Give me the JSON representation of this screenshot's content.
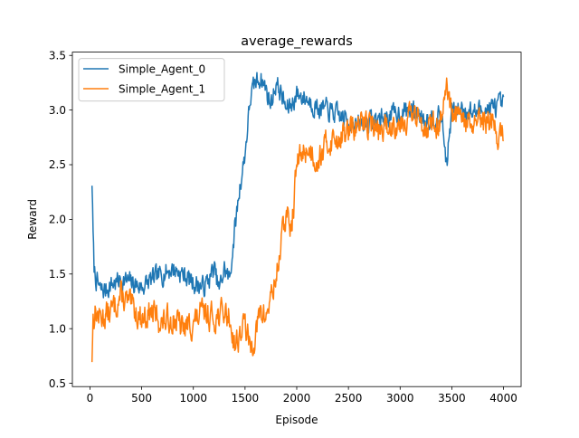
{
  "chart_data": {
    "type": "line",
    "title": "average_rewards",
    "xlabel": "Episode",
    "ylabel": "Reward",
    "xlim": [
      -170,
      4170
    ],
    "ylim": [
      0.47,
      3.53
    ],
    "xticks": [
      0,
      500,
      1000,
      1500,
      2000,
      2500,
      3000,
      3500,
      4000
    ],
    "yticks": [
      0.5,
      1.0,
      1.5,
      2.0,
      2.5,
      3.0,
      3.5
    ],
    "xtick_labels": [
      "0",
      "500",
      "1000",
      "1500",
      "2000",
      "2500",
      "3000",
      "3500",
      "4000"
    ],
    "ytick_labels": [
      "0.5",
      "1.0",
      "1.5",
      "2.0",
      "2.5",
      "3.0",
      "3.5"
    ],
    "legend_position": "top-left",
    "grid": false,
    "series": [
      {
        "name": "Simple_Agent_0",
        "color": "#1f77b4",
        "noise": 0.09,
        "seed": 7,
        "x": [
          20,
          30,
          40,
          60,
          100,
          150,
          200,
          300,
          400,
          500,
          600,
          700,
          800,
          900,
          1000,
          1100,
          1150,
          1200,
          1250,
          1300,
          1350,
          1400,
          1450,
          1500,
          1550,
          1600,
          1650,
          1700,
          1750,
          1800,
          1850,
          1900,
          1950,
          2000,
          2100,
          2200,
          2300,
          2400,
          2500,
          2600,
          2700,
          2800,
          2900,
          3000,
          3100,
          3200,
          3300,
          3400,
          3450,
          3500,
          3600,
          3700,
          3800,
          3900,
          4000
        ],
        "y": [
          2.35,
          1.85,
          1.55,
          1.45,
          1.35,
          1.35,
          1.4,
          1.45,
          1.42,
          1.38,
          1.45,
          1.5,
          1.55,
          1.5,
          1.42,
          1.38,
          1.45,
          1.55,
          1.35,
          1.55,
          1.45,
          1.9,
          2.3,
          2.6,
          3.1,
          3.25,
          3.3,
          3.2,
          3.05,
          3.25,
          3.15,
          3.0,
          3.05,
          3.15,
          3.1,
          3.02,
          3.0,
          2.95,
          2.9,
          2.85,
          2.9,
          2.92,
          2.95,
          2.98,
          3.0,
          2.95,
          2.92,
          2.95,
          2.5,
          2.98,
          3.02,
          2.98,
          3.0,
          3.02,
          3.05
        ]
      },
      {
        "name": "Simple_Agent_1",
        "color": "#ff7f0e",
        "noise": 0.12,
        "seed": 13,
        "x": [
          20,
          30,
          50,
          100,
          200,
          300,
          400,
          500,
          600,
          700,
          800,
          900,
          1000,
          1100,
          1200,
          1300,
          1350,
          1400,
          1450,
          1500,
          1550,
          1600,
          1650,
          1700,
          1750,
          1800,
          1850,
          1900,
          1950,
          2000,
          2050,
          2100,
          2200,
          2300,
          2400,
          2500,
          2600,
          2700,
          2800,
          2900,
          3000,
          3100,
          3200,
          3300,
          3400,
          3450,
          3500,
          3600,
          3700,
          3800,
          3900,
          3950,
          4000
        ],
        "y": [
          0.75,
          1.1,
          1.15,
          1.1,
          1.15,
          1.3,
          1.2,
          1.1,
          1.15,
          1.05,
          1.1,
          1.0,
          1.05,
          1.15,
          1.1,
          1.15,
          1.1,
          0.85,
          0.95,
          1.05,
          0.8,
          0.95,
          1.15,
          1.1,
          1.3,
          1.45,
          1.8,
          2.05,
          1.9,
          2.5,
          2.6,
          2.65,
          2.55,
          2.7,
          2.75,
          2.8,
          2.85,
          2.9,
          2.8,
          2.85,
          2.9,
          2.95,
          2.9,
          2.85,
          2.9,
          3.15,
          2.95,
          2.9,
          2.85,
          2.88,
          2.9,
          2.75,
          2.8
        ]
      }
    ]
  }
}
